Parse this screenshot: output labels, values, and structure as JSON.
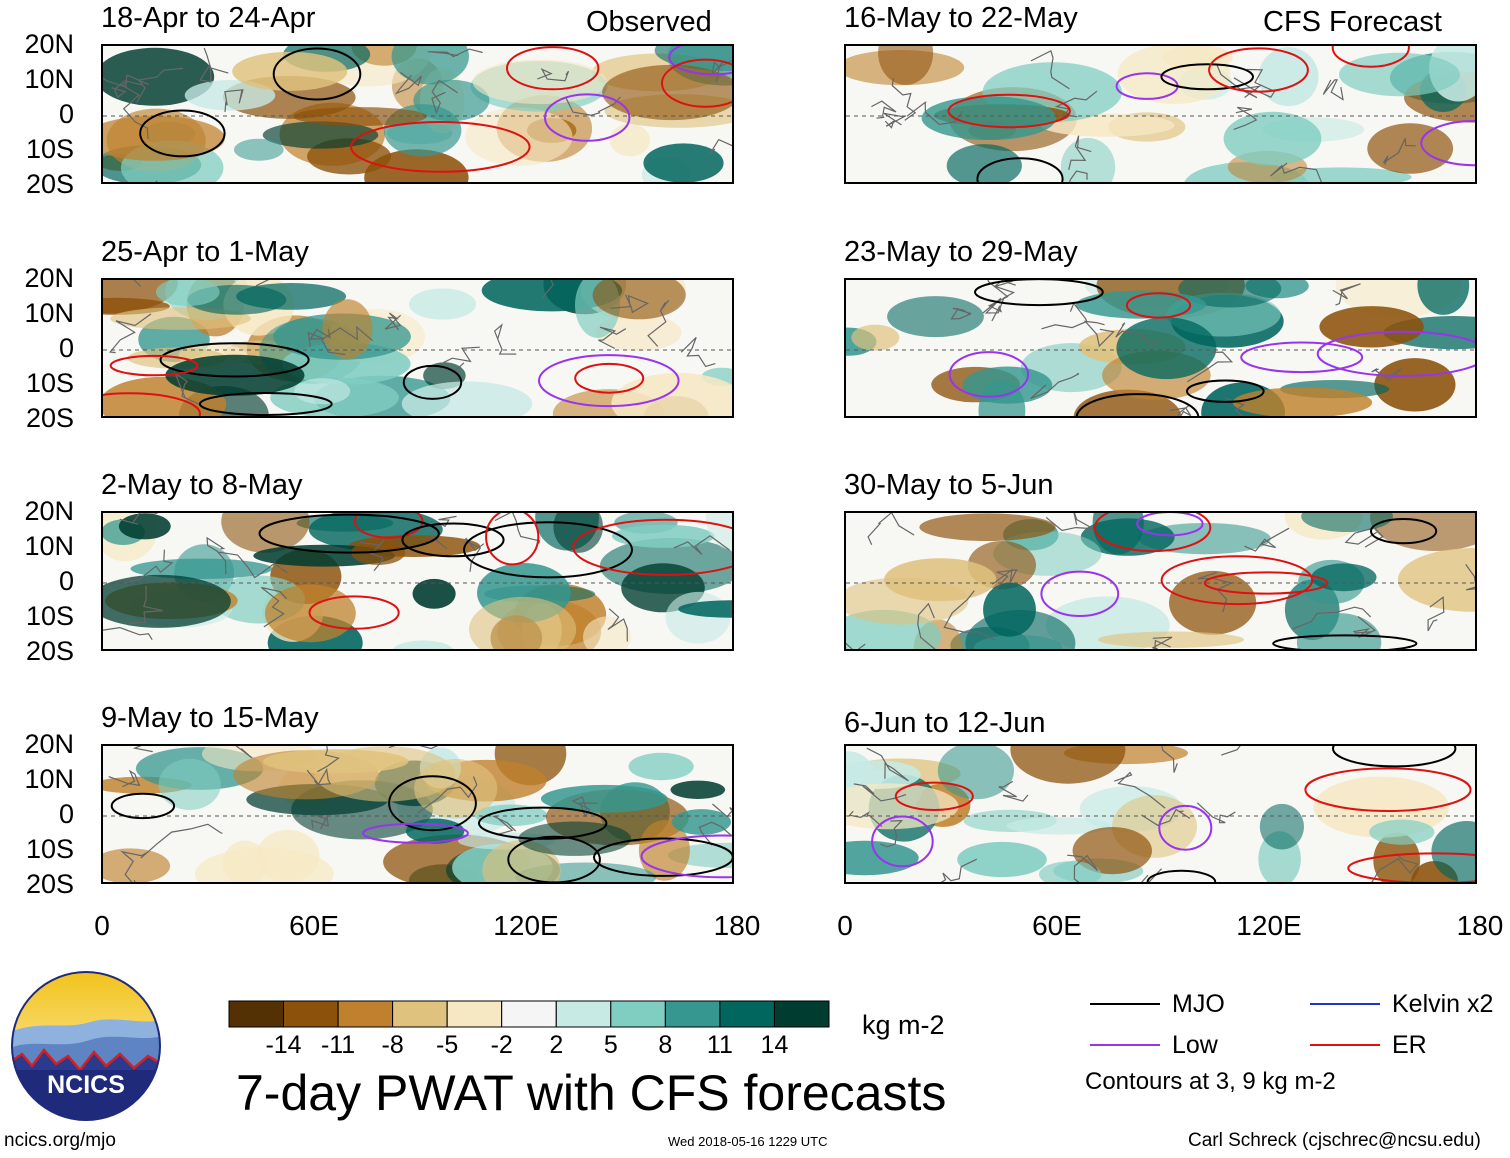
{
  "chart_data": {
    "type": "heatmap",
    "title": "7-day PWAT with CFS forecasts",
    "variable": "Precipitable water anomaly",
    "units": "kg m-2",
    "column_labels": {
      "left": "Observed",
      "right": "CFS Forecast"
    },
    "lat_ticks": [
      "20N",
      "10N",
      "0",
      "10S",
      "20S"
    ],
    "lon_ticks": [
      "0",
      "60E",
      "120E",
      "180"
    ],
    "lat_range": [
      -20,
      20
    ],
    "lon_range": [
      0,
      180
    ],
    "panels": [
      {
        "title": "18-Apr to 24-Apr",
        "kind": "observed"
      },
      {
        "title": "25-Apr to 1-May",
        "kind": "observed"
      },
      {
        "title": "2-May to 8-May",
        "kind": "observed"
      },
      {
        "title": "9-May to 15-May",
        "kind": "observed"
      },
      {
        "title": "16-May to 22-May",
        "kind": "forecast"
      },
      {
        "title": "23-May to 29-May",
        "kind": "forecast"
      },
      {
        "title": "30-May to 5-Jun",
        "kind": "forecast"
      },
      {
        "title": "6-Jun to 12-Jun",
        "kind": "forecast"
      }
    ],
    "colorbar": {
      "levels": [
        "-14",
        "-11",
        "-8",
        "-5",
        "-2",
        "2",
        "5",
        "8",
        "11",
        "14"
      ],
      "colors": [
        "#543005",
        "#8c510a",
        "#bf812d",
        "#dfc27d",
        "#f6e8c3",
        "#f5f5f5",
        "#c7eae5",
        "#80cdc1",
        "#35978f",
        "#01665e",
        "#003c30"
      ],
      "units_label": "kg m-2"
    },
    "legend": [
      {
        "label": "MJO",
        "color": "#000000"
      },
      {
        "label": "Kelvin x2",
        "color": "#2233cc"
      },
      {
        "label": "Low",
        "color": "#9933ee"
      },
      {
        "label": "ER",
        "color": "#dd1111"
      }
    ],
    "contour_note": "Contours at 3, 9 kg m-2"
  },
  "logo": {
    "text": "NCICS"
  },
  "footer": {
    "website": "ncics.org/mjo",
    "timestamp": "Wed 2018-05-16 1229 UTC",
    "author": "Carl Schreck (cjschrec@ncsu.edu)"
  }
}
